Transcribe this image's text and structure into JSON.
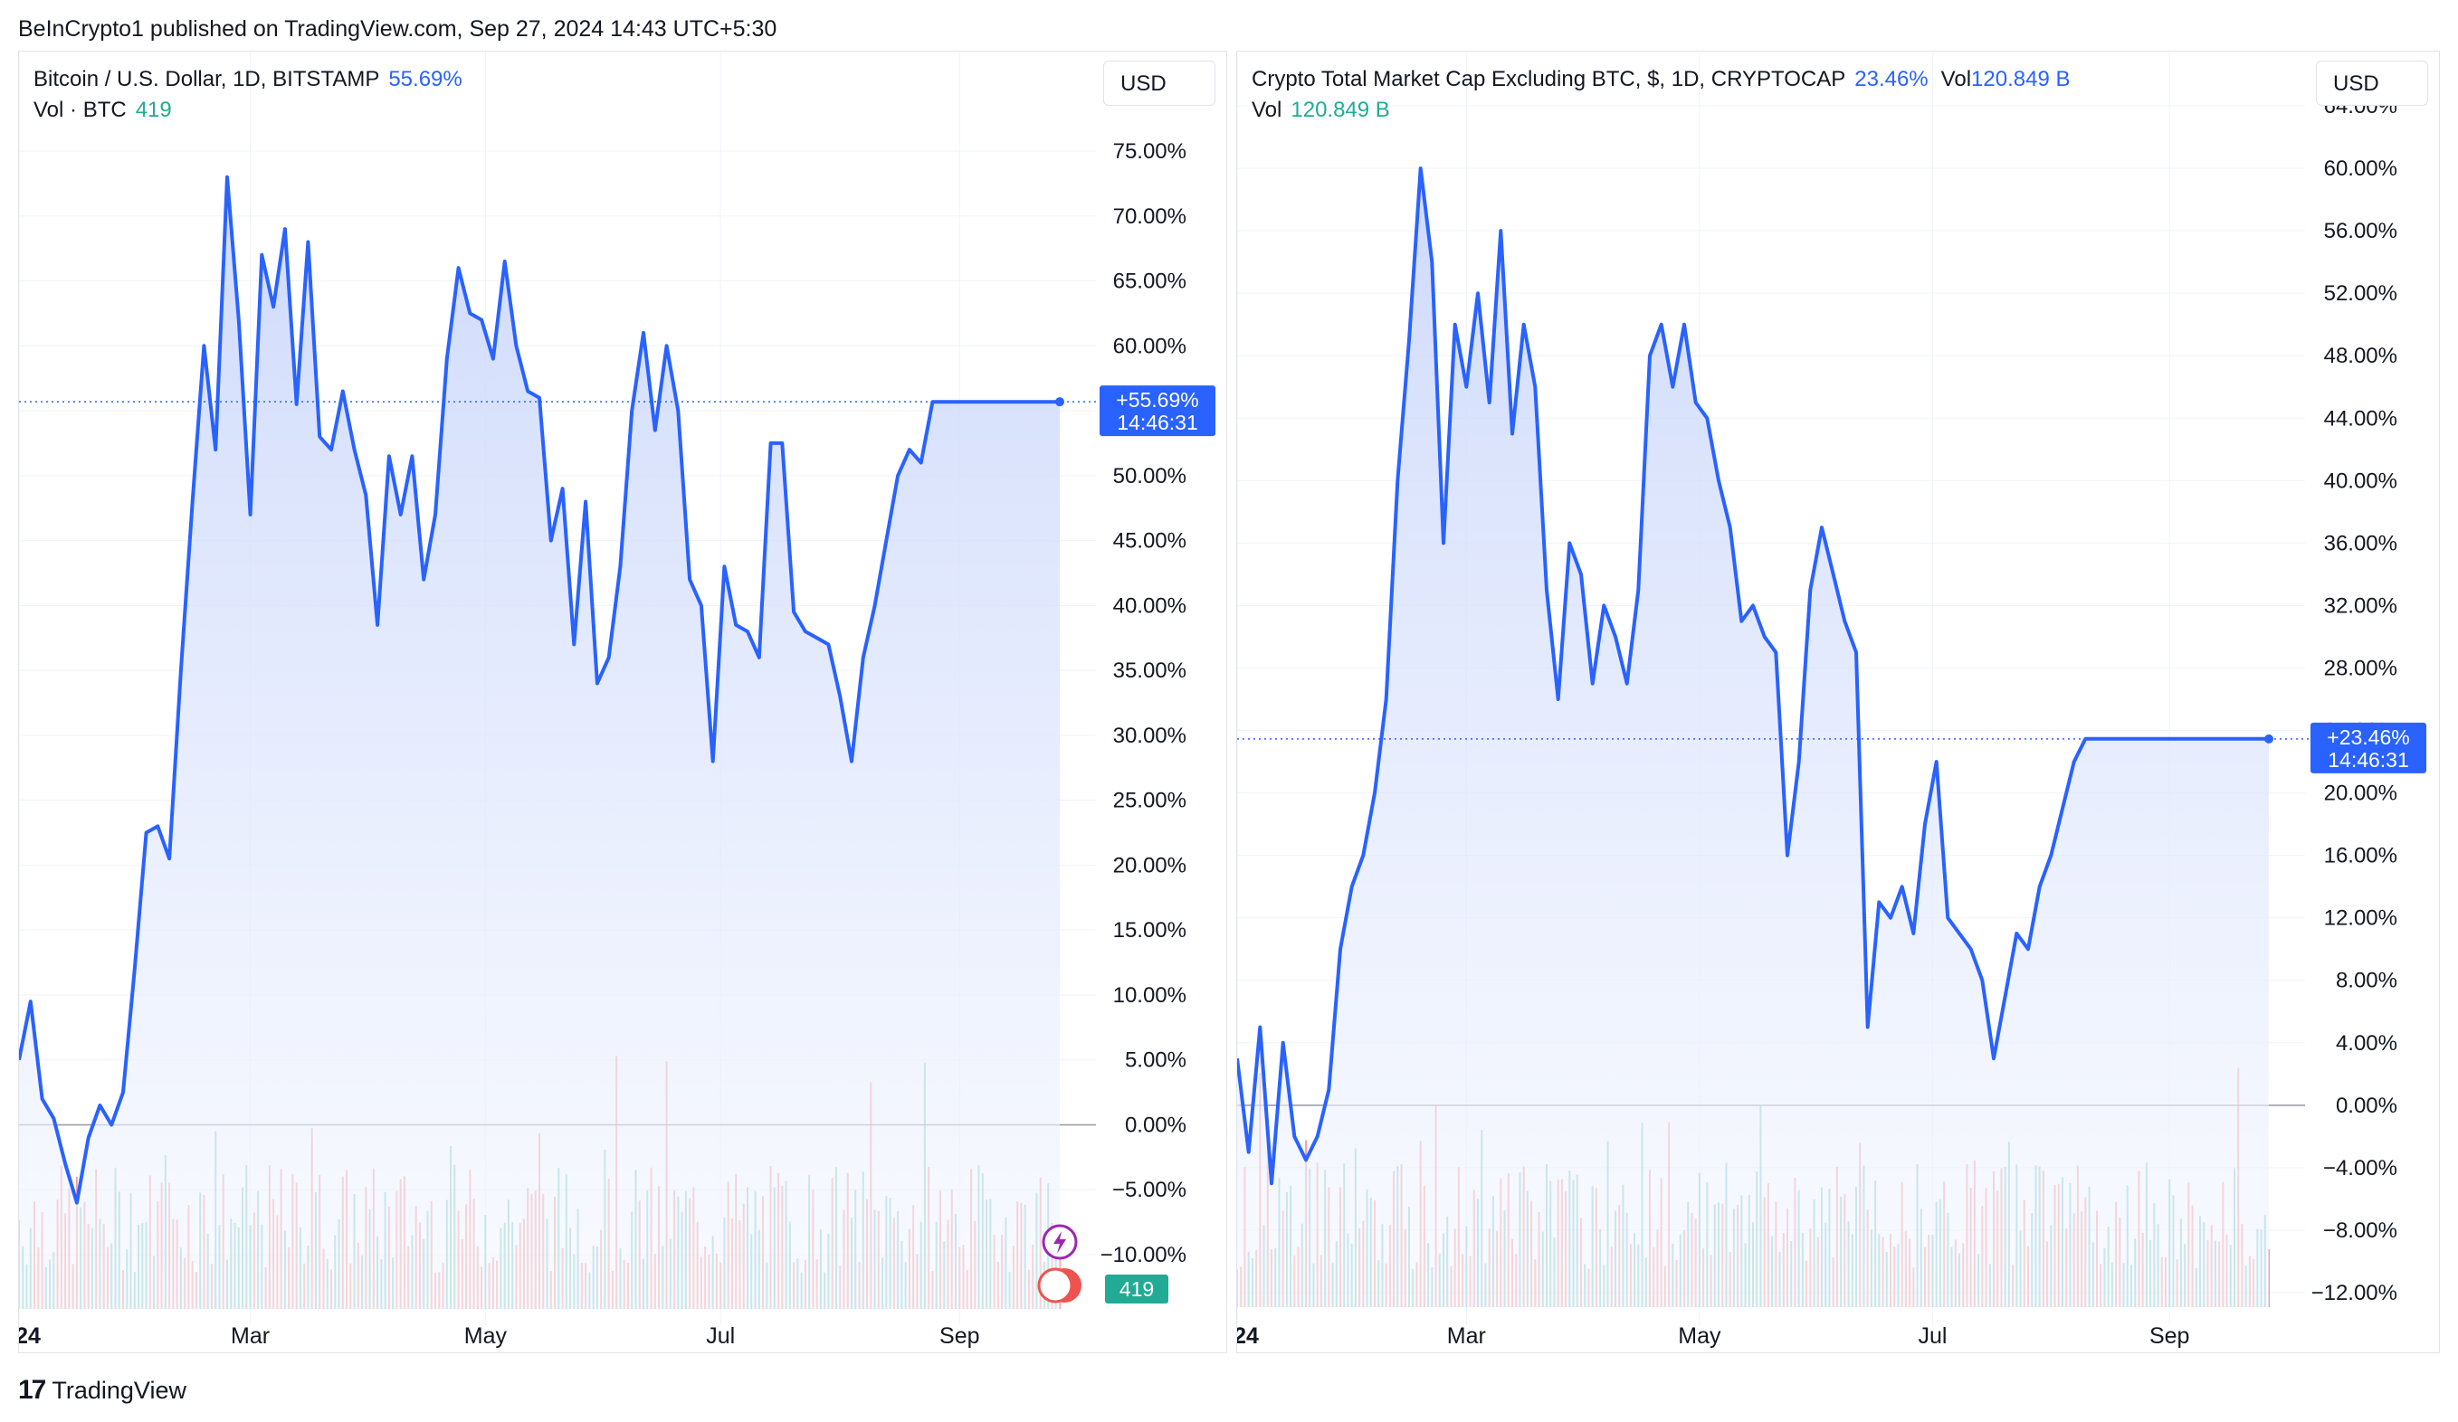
{
  "header": {
    "published": "BeInCrypto1 published on TradingView.com, Sep 27, 2024 14:43 UTC+5:30"
  },
  "footer": {
    "brand": "TradingView",
    "logo_glyph": "17"
  },
  "colors": {
    "line": "#2962ff",
    "fill_top": "#c9d6fb",
    "fill_bottom": "#f4f7ff",
    "vol_up": "#26a69a",
    "vol_down": "#ef5350",
    "grid": "#f0f3fa",
    "zero": "#9598a1"
  },
  "chart_data": [
    {
      "type": "area",
      "title": "Bitcoin / U.S. Dollar, 1D, BITSTAMP",
      "legend_value": "55.69%",
      "vol_label": "Vol · BTC",
      "vol_value": "419",
      "vol_badge": "419",
      "currency_button": "USD",
      "last_label": "+55.69%",
      "last_time": "14:46:31",
      "scale": "percent",
      "ylim": [
        -10,
        75
      ],
      "yticks": [
        "75.00%",
        "70.00%",
        "65.00%",
        "60.00%",
        "55.00%",
        "50.00%",
        "45.00%",
        "40.00%",
        "35.00%",
        "30.00%",
        "25.00%",
        "20.00%",
        "15.00%",
        "10.00%",
        "5.00%",
        "0.00%",
        "−5.00%",
        "−10.00%"
      ],
      "ytick_values": [
        75,
        70,
        65,
        60,
        55,
        50,
        45,
        40,
        35,
        30,
        25,
        20,
        15,
        10,
        5,
        0,
        -5,
        -10
      ],
      "xticks": [
        {
          "label": "24",
          "day": 0,
          "bold": true
        },
        {
          "label": "Mar",
          "day": 60
        },
        {
          "label": "May",
          "day": 121
        },
        {
          "label": "Jul",
          "day": 182
        },
        {
          "label": "Sep",
          "day": 244
        }
      ],
      "x_last_day": 270,
      "x": [
        0,
        3,
        6,
        9,
        12,
        15,
        18,
        21,
        24,
        27,
        30,
        33,
        36,
        39,
        42,
        45,
        48,
        51,
        54,
        57,
        60,
        63,
        66,
        69,
        72,
        75,
        78,
        81,
        84,
        87,
        90,
        93,
        96,
        99,
        102,
        105,
        108,
        111,
        114,
        117,
        120,
        123,
        126,
        129,
        132,
        135,
        138,
        141,
        144,
        147,
        150,
        153,
        156,
        159,
        162,
        165,
        168,
        171,
        174,
        177,
        180,
        183,
        186,
        189,
        192,
        195,
        198,
        201,
        204,
        207,
        210,
        213,
        216,
        219,
        222,
        225,
        228,
        231,
        234,
        237,
        240,
        243,
        246,
        249,
        252,
        255,
        258,
        261,
        264,
        267,
        270
      ],
      "y": [
        5.0,
        9.5,
        2.0,
        0.5,
        -3.0,
        -6.0,
        -1.0,
        1.5,
        0.0,
        2.5,
        12.0,
        22.5,
        23.0,
        20.5,
        35.0,
        48.0,
        60.0,
        52.0,
        73.0,
        62.0,
        47.0,
        67.0,
        63.0,
        69.0,
        55.5,
        68.0,
        53.0,
        52.0,
        56.5,
        52.0,
        48.5,
        38.5,
        51.5,
        47.0,
        51.5,
        42.0,
        47.0,
        59.0,
        66.0,
        62.5,
        62.0,
        59.0,
        66.5,
        60.0,
        56.5,
        56.0,
        45.0,
        49.0,
        37.0,
        48.0,
        34.0,
        36.0,
        43.0,
        55.0,
        61.0,
        53.5,
        60.0,
        55.0,
        42.0,
        40.0,
        28.0,
        43.0,
        38.5,
        38.0,
        36.0,
        52.5,
        52.5,
        39.5,
        38.0,
        37.5,
        37.0,
        33.0,
        28.0,
        36.0,
        40.0,
        45.0,
        50.0,
        52.0,
        51.0,
        55.69,
        55.69,
        55.69,
        55.69,
        55.69,
        55.69,
        55.69,
        55.69,
        55.69,
        55.69,
        55.69,
        55.69
      ],
      "volume_note": "volume histogram at bottom (BTC)"
    },
    {
      "type": "area",
      "title": "Crypto Total Market Cap Excluding BTC, $, 1D, CRYPTOCAP",
      "legend_value": "23.46%",
      "vol_inline_label": "Vol",
      "vol_inline_value": "120.849 B",
      "vol_label": "Vol",
      "vol_value": "120.849 B",
      "currency_button": "USD",
      "last_label": "+23.46%",
      "last_time": "14:46:31",
      "scale": "percent",
      "ylim": [
        -12,
        64
      ],
      "yticks": [
        "64.00%",
        "60.00%",
        "56.00%",
        "52.00%",
        "48.00%",
        "44.00%",
        "40.00%",
        "36.00%",
        "32.00%",
        "28.00%",
        "24.00%",
        "20.00%",
        "16.00%",
        "12.00%",
        "8.00%",
        "4.00%",
        "0.00%",
        "−4.00%",
        "−8.00%",
        "−12.00%"
      ],
      "ytick_values": [
        64,
        60,
        56,
        52,
        48,
        44,
        40,
        36,
        32,
        28,
        24,
        20,
        16,
        12,
        8,
        4,
        0,
        -4,
        -8,
        -12
      ],
      "xticks": [
        {
          "label": "24",
          "day": 0,
          "bold": true
        },
        {
          "label": "Mar",
          "day": 60
        },
        {
          "label": "May",
          "day": 121
        },
        {
          "label": "Jul",
          "day": 182
        },
        {
          "label": "Sep",
          "day": 244
        }
      ],
      "x_last_day": 270,
      "x": [
        0,
        3,
        6,
        9,
        12,
        15,
        18,
        21,
        24,
        27,
        30,
        33,
        36,
        39,
        42,
        45,
        48,
        51,
        54,
        57,
        60,
        63,
        66,
        69,
        72,
        75,
        78,
        81,
        84,
        87,
        90,
        93,
        96,
        99,
        102,
        105,
        108,
        111,
        114,
        117,
        120,
        123,
        126,
        129,
        132,
        135,
        138,
        141,
        144,
        147,
        150,
        153,
        156,
        159,
        162,
        165,
        168,
        171,
        174,
        177,
        180,
        183,
        186,
        189,
        192,
        195,
        198,
        201,
        204,
        207,
        210,
        213,
        216,
        219,
        222,
        225,
        228,
        231,
        234,
        237,
        240,
        243,
        246,
        249,
        252,
        255,
        258,
        261,
        264,
        267,
        270
      ],
      "y": [
        3.0,
        -3.0,
        5.0,
        -5.0,
        4.0,
        -2.0,
        -3.5,
        -2.0,
        1.0,
        10.0,
        14.0,
        16.0,
        20.0,
        26.0,
        40.0,
        49.0,
        60.0,
        54.0,
        36.0,
        50.0,
        46.0,
        52.0,
        45.0,
        56.0,
        43.0,
        50.0,
        46.0,
        33.0,
        26.0,
        36.0,
        34.0,
        27.0,
        32.0,
        30.0,
        27.0,
        33.0,
        48.0,
        50.0,
        46.0,
        50.0,
        45.0,
        44.0,
        40.0,
        37.0,
        31.0,
        32.0,
        30.0,
        29.0,
        16.0,
        22.0,
        33.0,
        37.0,
        34.0,
        31.0,
        29.0,
        5.0,
        13.0,
        12.0,
        14.0,
        11.0,
        18.0,
        22.0,
        12.0,
        11.0,
        10.0,
        8.0,
        3.0,
        7.0,
        11.0,
        10.0,
        14.0,
        16.0,
        19.0,
        22.0,
        23.46,
        23.46,
        23.46,
        23.46,
        23.46,
        23.46,
        23.46,
        23.46,
        23.46,
        23.46,
        23.46,
        23.46,
        23.46,
        23.46,
        23.46,
        23.46,
        23.46
      ],
      "volume_note": "volume histogram at bottom"
    }
  ]
}
